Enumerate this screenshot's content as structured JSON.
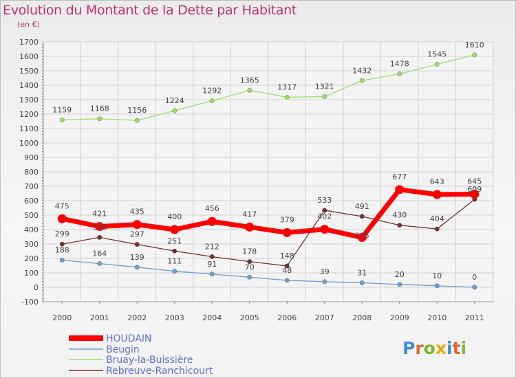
{
  "title": "Evolution du Montant de la Dette par Habitant",
  "subtitle": "(en €)",
  "logo": {
    "text": "Proxiti",
    "colors": [
      "#3d8fd6",
      "#e8652b",
      "#78b833",
      "#f0a500",
      "#3d8fd6",
      "#e8652b",
      "#78b833"
    ]
  },
  "chart_data": {
    "type": "line",
    "x": [
      "2000",
      "2001",
      "2002",
      "2003",
      "2004",
      "2005",
      "2006",
      "2007",
      "2008",
      "2009",
      "2010",
      "2011"
    ],
    "ylim": [
      -100,
      1700
    ],
    "yticks": [
      "-100",
      "0",
      "100",
      "200",
      "300",
      "400",
      "500",
      "600",
      "700",
      "800",
      "900",
      "1000",
      "1100",
      "1200",
      "1300",
      "1400",
      "1500",
      "1600",
      "1700"
    ],
    "grid": true,
    "legend_position": "bottom-left",
    "series": [
      {
        "name": "HOUDAIN",
        "color": "#ff0000",
        "values": [
          475,
          421,
          435,
          400,
          456,
          417,
          379,
          402,
          345,
          677,
          643,
          645
        ],
        "labels": [
          "475",
          "421",
          "435",
          "400",
          "456",
          "417",
          "379",
          "402",
          "345",
          "677",
          "643",
          "645"
        ]
      },
      {
        "name": "Beugin",
        "color": "#6aa0d8",
        "values": [
          188,
          164,
          139,
          111,
          91,
          70,
          48,
          39,
          31,
          20,
          10,
          0
        ],
        "labels": [
          "188",
          "164",
          "139",
          "111",
          "91",
          "70",
          "48",
          "39",
          "31",
          "20",
          "10",
          "0"
        ]
      },
      {
        "name": "Bruay-la-Buissière",
        "color": "#99e06a",
        "values": [
          1159,
          1168,
          1156,
          1224,
          1292,
          1365,
          1317,
          1321,
          1432,
          1478,
          1545,
          1610
        ],
        "labels": [
          "1159",
          "1168",
          "1156",
          "1224",
          "1292",
          "1365",
          "1317",
          "1321",
          "1432",
          "1478",
          "1545",
          "1610"
        ]
      },
      {
        "name": "Rebreuve-Ranchicourt",
        "color": "#7a2e2e",
        "values": [
          299,
          346,
          297,
          251,
          212,
          178,
          148,
          533,
          491,
          430,
          404,
          609
        ],
        "labels": [
          "299",
          "346",
          "297",
          "251",
          "212",
          "178",
          "148",
          "533",
          "491",
          "430",
          "404",
          "609"
        ]
      }
    ]
  }
}
